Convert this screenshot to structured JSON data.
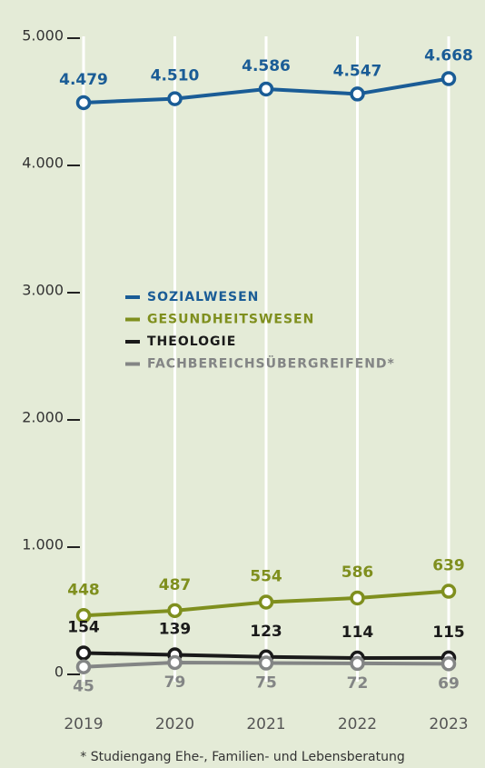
{
  "chart_data": {
    "type": "line",
    "categories": [
      "2019",
      "2020",
      "2021",
      "2022",
      "2023"
    ],
    "series": [
      {
        "name": "SOZIALWESEN",
        "color": "#1a5c96",
        "values": [
          4479,
          4510,
          4586,
          4547,
          4668
        ],
        "value_labels": [
          "4.479",
          "4.510",
          "4.586",
          "4.547",
          "4.668"
        ]
      },
      {
        "name": "GESUNDHEITSWESEN",
        "color": "#7f8f1e",
        "values": [
          448,
          487,
          554,
          586,
          639
        ]
      },
      {
        "name": "THEOLOGIE",
        "color": "#1a1a1a",
        "values": [
          154,
          139,
          123,
          114,
          115
        ]
      },
      {
        "name": "FACHBEREICHSÜBERGREIFEND*",
        "color": "#838585",
        "values": [
          45,
          79,
          75,
          72,
          69
        ]
      }
    ],
    "ylim": [
      0,
      5000
    ],
    "yticks": [
      0,
      {
        "value": 1000,
        "label": "1.000"
      },
      {
        "value": 2000,
        "label": "2.000"
      },
      {
        "value": 3000,
        "label": "3.000"
      },
      {
        "value": 4000,
        "label": "4.000"
      },
      {
        "value": 5000,
        "label": "5.000"
      }
    ],
    "grid": true,
    "note": "* Studiengang Ehe-, Familien- und Lebensberatung"
  }
}
